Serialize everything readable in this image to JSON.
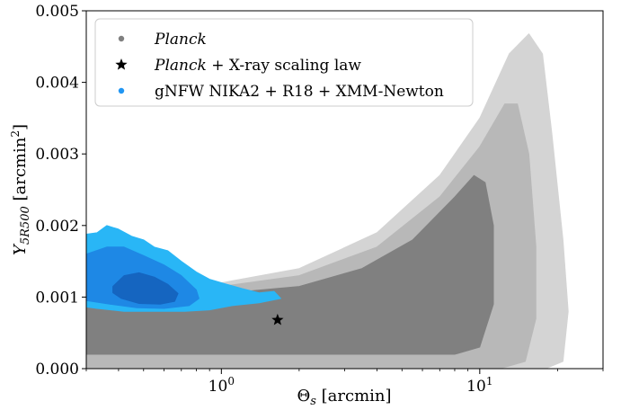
{
  "chart_data": {
    "type": "contour",
    "xscale": "log",
    "xlim": [
      0.3,
      30
    ],
    "ylim": [
      0.0,
      0.005
    ],
    "xlabel": "Θs [arcmin]",
    "ylabel": "Y5R500 [arcmin²]",
    "x_tick_labels": [
      {
        "value": 1,
        "base": "10",
        "exp": "0"
      },
      {
        "value": 10,
        "base": "10",
        "exp": "1"
      }
    ],
    "y_ticks": [
      0.0,
      0.001,
      0.002,
      0.003,
      0.004,
      0.005
    ],
    "y_tick_labels": [
      "0.000",
      "0.001",
      "0.002",
      "0.003",
      "0.004",
      "0.005"
    ],
    "legend": {
      "placement": "upper-left",
      "entries": [
        {
          "marker": "dot",
          "color": "#808080",
          "label_italic": "Planck",
          "label_rest": ""
        },
        {
          "marker": "star",
          "color": "#000000",
          "label_italic": "Planck",
          "label_rest": " + X-ray scaling law"
        },
        {
          "marker": "dot",
          "color": "#2196f3",
          "label_italic": "",
          "label_rest": "gNFW NIKA2 + R18 + XMM-Newton"
        }
      ]
    },
    "series": [
      {
        "name": "Planck",
        "kind": "filled-contours",
        "levels": [
          {
            "level": "outer",
            "color": "#d4d4d4",
            "polygon": [
              [
                0.3,
                0.0
              ],
              [
                0.3,
                0.00095
              ],
              [
                0.6,
                0.00115
              ],
              [
                1.0,
                0.0012
              ],
              [
                2.0,
                0.0014
              ],
              [
                4.0,
                0.0019
              ],
              [
                7.0,
                0.0027
              ],
              [
                10.0,
                0.0035
              ],
              [
                13.0,
                0.0044
              ],
              [
                15.5,
                0.00468
              ],
              [
                17.5,
                0.0044
              ],
              [
                19.0,
                0.0033
              ],
              [
                21.0,
                0.0018
              ],
              [
                22.0,
                0.0008
              ],
              [
                21.0,
                0.0001
              ],
              [
                18.0,
                0.0
              ],
              [
                2.0,
                0.0
              ],
              [
                0.3,
                0.0
              ]
            ]
          },
          {
            "level": "middle",
            "color": "#b8b8b8",
            "polygon": [
              [
                0.3,
                0.0
              ],
              [
                0.3,
                0.0009
              ],
              [
                0.6,
                0.0011
              ],
              [
                1.0,
                0.00115
              ],
              [
                2.0,
                0.0013
              ],
              [
                4.0,
                0.0017
              ],
              [
                7.0,
                0.0024
              ],
              [
                10.0,
                0.0031
              ],
              [
                12.5,
                0.0037
              ],
              [
                14.0,
                0.0037
              ],
              [
                15.5,
                0.003
              ],
              [
                16.5,
                0.0017
              ],
              [
                16.5,
                0.0007
              ],
              [
                15.0,
                0.0001
              ],
              [
                12.0,
                0.0
              ],
              [
                0.3,
                0.0
              ]
            ]
          },
          {
            "level": "inner",
            "color": "#808080",
            "polygon": [
              [
                0.3,
                0.0002
              ],
              [
                0.3,
                0.00085
              ],
              [
                0.6,
                0.001
              ],
              [
                1.0,
                0.00105
              ],
              [
                2.0,
                0.00115
              ],
              [
                3.5,
                0.0014
              ],
              [
                5.5,
                0.0018
              ],
              [
                8.0,
                0.0024
              ],
              [
                9.5,
                0.0027
              ],
              [
                10.5,
                0.0026
              ],
              [
                11.3,
                0.002
              ],
              [
                11.3,
                0.0009
              ],
              [
                10.0,
                0.0003
              ],
              [
                8.0,
                0.0002
              ],
              [
                0.3,
                0.0002
              ]
            ]
          }
        ]
      },
      {
        "name": "gNFW NIKA2 + R18 + XMM-Newton",
        "kind": "filled-contours",
        "levels": [
          {
            "level": "outer",
            "color": "#29b6f6",
            "polygon": [
              [
                0.3,
                0.00188
              ],
              [
                0.33,
                0.0019
              ],
              [
                0.36,
                0.002
              ],
              [
                0.4,
                0.00195
              ],
              [
                0.45,
                0.00185
              ],
              [
                0.5,
                0.0018
              ],
              [
                0.55,
                0.0017
              ],
              [
                0.62,
                0.00165
              ],
              [
                0.7,
                0.0015
              ],
              [
                0.8,
                0.00135
              ],
              [
                0.9,
                0.00125
              ],
              [
                1.05,
                0.00118
              ],
              [
                1.2,
                0.00112
              ],
              [
                1.4,
                0.00106
              ],
              [
                1.6,
                0.00108
              ],
              [
                1.7,
                0.00098
              ],
              [
                1.4,
                0.00092
              ],
              [
                1.1,
                0.00088
              ],
              [
                0.9,
                0.00082
              ],
              [
                0.72,
                0.0008
              ],
              [
                0.55,
                0.0008
              ],
              [
                0.42,
                0.0008
              ],
              [
                0.33,
                0.00084
              ],
              [
                0.3,
                0.00086
              ]
            ]
          },
          {
            "level": "middle",
            "color": "#1e88e5",
            "polygon": [
              [
                0.3,
                0.0016
              ],
              [
                0.36,
                0.0017
              ],
              [
                0.42,
                0.0017
              ],
              [
                0.5,
                0.00158
              ],
              [
                0.6,
                0.00145
              ],
              [
                0.7,
                0.0013
              ],
              [
                0.8,
                0.0011
              ],
              [
                0.82,
                0.00098
              ],
              [
                0.75,
                0.00088
              ],
              [
                0.6,
                0.00084
              ],
              [
                0.47,
                0.00085
              ],
              [
                0.37,
                0.0009
              ],
              [
                0.3,
                0.00095
              ]
            ]
          },
          {
            "level": "inner",
            "color": "#1565c0",
            "polygon": [
              [
                0.38,
                0.00115
              ],
              [
                0.42,
                0.0013
              ],
              [
                0.48,
                0.00134
              ],
              [
                0.55,
                0.00128
              ],
              [
                0.62,
                0.00118
              ],
              [
                0.68,
                0.00105
              ],
              [
                0.66,
                0.00094
              ],
              [
                0.58,
                0.0009
              ],
              [
                0.48,
                0.00091
              ],
              [
                0.41,
                0.00098
              ],
              [
                0.38,
                0.00106
              ]
            ]
          }
        ]
      },
      {
        "name": "Planck + X-ray scaling law",
        "kind": "point",
        "marker": "star",
        "color": "#000000",
        "x": 1.65,
        "y": 0.00068
      }
    ]
  }
}
